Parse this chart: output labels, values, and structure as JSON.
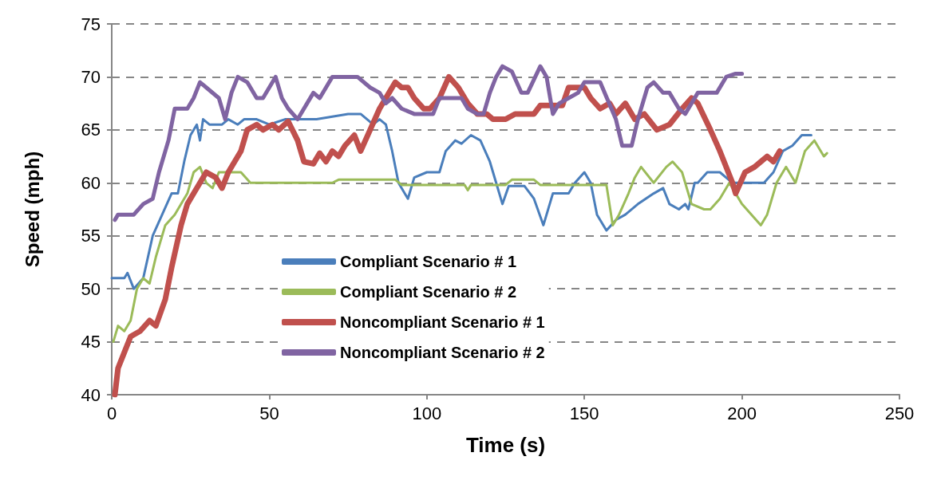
{
  "chart_data": {
    "type": "line",
    "xlabel": "Time (s)",
    "ylabel": "Speed (mph)",
    "xlim": [
      0,
      250
    ],
    "xticks": [
      0,
      50,
      100,
      150,
      200,
      250
    ],
    "ylim": [
      40,
      75
    ],
    "yticks": [
      40,
      45,
      50,
      55,
      60,
      65,
      70,
      75
    ],
    "grid": "y",
    "legend": "bottom",
    "marker": "none",
    "line_style": "solid",
    "series": [
      {
        "name": "Compliant Scenario # 1",
        "color": "#4a7ebb",
        "x": [
          0,
          4,
          5,
          7,
          10,
          13,
          16,
          19,
          21,
          23,
          25,
          27,
          28,
          29,
          31,
          35,
          37,
          40,
          42,
          46,
          50,
          55,
          65,
          75,
          79,
          83,
          85,
          87,
          89,
          91,
          94,
          96,
          100,
          104,
          106,
          109,
          111,
          114,
          117,
          120,
          122,
          124,
          126,
          131,
          134,
          137,
          140,
          145,
          147,
          150,
          152,
          154,
          157,
          160,
          163,
          167,
          172,
          175,
          177,
          180,
          182,
          183,
          185,
          186,
          189,
          193,
          197,
          207,
          210,
          213,
          216,
          219,
          222
        ],
        "values": [
          51,
          51,
          51.5,
          50,
          51,
          55,
          57,
          59,
          59,
          62,
          64.5,
          65.5,
          64,
          66,
          65.5,
          65.5,
          66,
          65.5,
          66,
          66,
          65.5,
          66,
          66,
          66.5,
          66.5,
          65.5,
          66,
          65.5,
          63,
          60,
          58.5,
          60.5,
          61,
          61,
          63,
          64,
          63.7,
          64.5,
          64,
          62,
          60,
          58,
          59.7,
          59.7,
          58.5,
          56,
          59,
          59,
          60,
          61,
          60,
          57,
          55.5,
          56.5,
          57,
          58,
          59,
          59.5,
          58,
          57.5,
          58,
          57.5,
          60,
          60,
          61,
          61,
          60,
          60,
          61,
          63,
          63.5,
          64.5,
          64.5
        ]
      },
      {
        "name": "Compliant Scenario # 2",
        "color": "#9bbb59",
        "x": [
          0.5,
          2,
          4,
          6,
          8,
          10,
          12,
          14,
          17,
          20,
          24,
          26,
          28,
          30,
          32,
          34,
          41,
          44,
          70,
          72,
          90,
          92,
          112,
          113,
          114,
          125,
          127,
          134,
          136,
          157,
          159,
          161,
          164,
          166,
          168,
          172,
          176,
          178,
          181,
          184,
          188,
          190,
          193,
          196,
          200,
          206,
          208,
          211,
          214,
          217,
          220,
          223,
          226,
          227
        ],
        "values": [
          45,
          46.5,
          46,
          47,
          50,
          51,
          50.5,
          53,
          56,
          57,
          59,
          61,
          61.5,
          60,
          59.5,
          61,
          61,
          60,
          60,
          60.3,
          60.3,
          59.8,
          59.8,
          59.3,
          59.8,
          59.8,
          60.3,
          60.3,
          59.8,
          59.8,
          56,
          57,
          59,
          60.5,
          61.5,
          60,
          61.5,
          62,
          61,
          58,
          57.5,
          57.5,
          58.5,
          60,
          58,
          56,
          57,
          60,
          61.5,
          60,
          63,
          64,
          62.5,
          62.8
        ]
      },
      {
        "name": "Noncompliant Scenario # 1",
        "color": "#c0504d",
        "x": [
          1,
          2,
          4,
          6,
          9,
          12,
          14,
          17,
          19,
          22,
          24,
          26,
          28,
          30,
          33,
          35,
          37,
          41,
          43,
          46,
          48,
          51,
          53,
          56,
          59,
          61,
          64,
          66,
          68,
          70,
          72,
          74,
          77,
          79,
          82,
          85,
          88,
          90,
          92,
          94,
          96,
          99,
          101,
          104,
          107,
          110,
          113,
          116,
          119,
          121,
          125,
          128,
          134,
          136,
          143,
          145,
          150,
          152,
          155,
          158,
          160,
          163,
          166,
          169,
          173,
          177,
          181,
          184,
          186,
          190,
          193,
          197,
          198,
          201,
          204,
          206,
          208,
          210,
          212
        ],
        "values": [
          40,
          42.5,
          44,
          45.5,
          46,
          47,
          46.5,
          49,
          52,
          56,
          58,
          59,
          60,
          61,
          60.5,
          59.5,
          61,
          63,
          65,
          65.5,
          65,
          65.5,
          65,
          65.8,
          64,
          62,
          61.8,
          62.8,
          62,
          63,
          62.5,
          63.5,
          64.5,
          63,
          65,
          67,
          68.5,
          69.5,
          69,
          69,
          68,
          67,
          67,
          68,
          70,
          69,
          67.5,
          66.5,
          66.5,
          66,
          66,
          66.5,
          66.5,
          67.3,
          67.3,
          69,
          69,
          68,
          67,
          67.5,
          66.5,
          67.5,
          66,
          66.5,
          65,
          65.5,
          67,
          68,
          67.5,
          65,
          63,
          60,
          59,
          61,
          61.5,
          62,
          62.5,
          62,
          63
        ]
      },
      {
        "name": "Noncompliant Scenario # 2",
        "color": "#8064a2",
        "x": [
          1,
          2,
          7,
          10,
          13,
          15,
          18,
          20,
          24,
          26,
          28,
          30,
          34,
          36,
          38,
          40,
          43,
          46,
          48,
          50,
          52,
          54,
          56,
          59,
          62,
          64,
          66,
          70,
          78,
          82,
          85,
          87,
          89,
          92,
          96,
          102,
          104,
          111,
          113,
          116,
          118,
          120,
          122,
          124,
          127,
          130,
          132,
          136,
          138,
          140,
          142,
          145,
          148,
          150,
          155,
          160,
          162,
          165,
          167,
          170,
          172,
          175,
          177,
          180,
          182,
          184,
          186,
          192,
          195,
          198,
          200
        ],
        "values": [
          56.5,
          57,
          57,
          58,
          58.5,
          61,
          64,
          67,
          67,
          68,
          69.5,
          69,
          68,
          66,
          68.5,
          70,
          69.5,
          68,
          68,
          69,
          70,
          68,
          67,
          66,
          67.5,
          68.5,
          68,
          70,
          70,
          69,
          68.5,
          67.5,
          68,
          67,
          66.5,
          66.5,
          68,
          68,
          67,
          66.5,
          66.5,
          68.5,
          70,
          71,
          70.5,
          68.5,
          68.5,
          71,
          70,
          66.5,
          67.5,
          68,
          68.5,
          69.5,
          69.5,
          66,
          63.5,
          63.5,
          66,
          69,
          69.5,
          68.5,
          68.5,
          67,
          66.5,
          67.5,
          68.5,
          68.5,
          70,
          70.3,
          70.3
        ]
      }
    ]
  }
}
